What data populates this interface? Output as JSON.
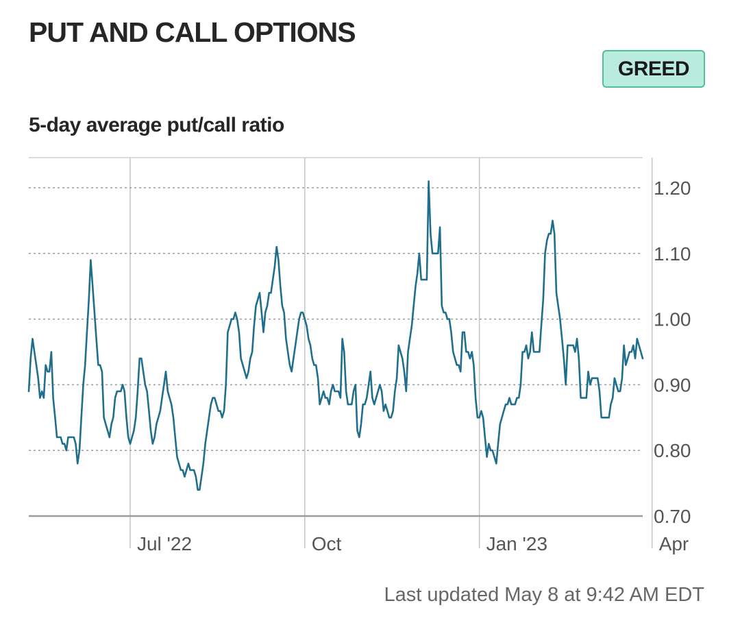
{
  "header": {
    "title": "PUT AND CALL OPTIONS",
    "badge": "GREED",
    "subtitle": "5-day average put/call ratio"
  },
  "colors": {
    "line": "#1f6e8c",
    "badge_bg": "#b9ecdf",
    "badge_border": "#4fbf98"
  },
  "footer": {
    "updated": "Last updated May 8 at 9:42 AM EDT"
  },
  "chart_data": {
    "type": "line",
    "title": "5-day average put/call ratio",
    "ylim": [
      0.7,
      1.25
    ],
    "y_ticks": [
      {
        "value": 1.2,
        "label": "1.20"
      },
      {
        "value": 1.1,
        "label": "1.10"
      },
      {
        "value": 1.0,
        "label": "1.00"
      },
      {
        "value": 0.9,
        "label": "0.90"
      },
      {
        "value": 0.8,
        "label": "0.80"
      },
      {
        "value": 0.7,
        "label": "0.70"
      }
    ],
    "x_ticks": [
      {
        "label": "Jul '22",
        "index": 54
      },
      {
        "label": "Oct",
        "index": 147
      },
      {
        "label": "Jan '23",
        "index": 240
      },
      {
        "label": "Apr",
        "index": 332
      }
    ],
    "grid": true,
    "series": [
      {
        "values": [
          0.89,
          0.94,
          0.97,
          0.95,
          0.93,
          0.91,
          0.88,
          0.89,
          0.88,
          0.93,
          0.92,
          0.92,
          0.95,
          0.88,
          0.85,
          0.82,
          0.82,
          0.82,
          0.81,
          0.81,
          0.8,
          0.82,
          0.82,
          0.82,
          0.82,
          0.81,
          0.78,
          0.8,
          0.85,
          0.9,
          0.93,
          0.98,
          1.03,
          1.09,
          1.05,
          1.01,
          0.97,
          0.93,
          0.93,
          0.92,
          0.85,
          0.84,
          0.83,
          0.82,
          0.84,
          0.85,
          0.88,
          0.89,
          0.89,
          0.89,
          0.9,
          0.89,
          0.85,
          0.82,
          0.81,
          0.82,
          0.83,
          0.85,
          0.89,
          0.94,
          0.94,
          0.92,
          0.9,
          0.89,
          0.86,
          0.83,
          0.81,
          0.82,
          0.84,
          0.85,
          0.86,
          0.88,
          0.9,
          0.92,
          0.89,
          0.88,
          0.87,
          0.85,
          0.82,
          0.79,
          0.78,
          0.77,
          0.77,
          0.76,
          0.77,
          0.78,
          0.77,
          0.77,
          0.77,
          0.76,
          0.74,
          0.74,
          0.76,
          0.78,
          0.81,
          0.83,
          0.85,
          0.87,
          0.88,
          0.88,
          0.87,
          0.86,
          0.86,
          0.85,
          0.86,
          0.9,
          0.98,
          0.99,
          1.0,
          1.0,
          1.01,
          1.0,
          0.98,
          0.94,
          0.93,
          0.92,
          0.91,
          0.92,
          0.94,
          0.95,
          0.99,
          1.02,
          1.03,
          1.04,
          1.01,
          0.98,
          1.01,
          1.02,
          1.04,
          1.04,
          1.06,
          1.08,
          1.11,
          1.09,
          1.05,
          1.02,
          1.01,
          0.97,
          0.95,
          0.93,
          0.92,
          0.94,
          0.96,
          0.98,
          1.0,
          1.01,
          1.01,
          1.0,
          0.99,
          0.97,
          0.96,
          0.94,
          0.93,
          0.93,
          0.91,
          0.87,
          0.88,
          0.89,
          0.88,
          0.88,
          0.87,
          0.89,
          0.9,
          0.89,
          0.89,
          0.89,
          0.88,
          0.97,
          0.95,
          0.89,
          0.87,
          0.87,
          0.87,
          0.89,
          0.9,
          0.83,
          0.82,
          0.84,
          0.87,
          0.87,
          0.88,
          0.9,
          0.92,
          0.88,
          0.87,
          0.88,
          0.89,
          0.9,
          0.89,
          0.86,
          0.87,
          0.86,
          0.85,
          0.85,
          0.86,
          0.89,
          0.91,
          0.96,
          0.95,
          0.94,
          0.92,
          0.89,
          0.95,
          0.97,
          0.99,
          1.02,
          1.05,
          1.07,
          1.1,
          1.06,
          1.06,
          1.06,
          1.06,
          1.21,
          1.13,
          1.1,
          1.1,
          1.1,
          1.1,
          1.14,
          1.02,
          1.01,
          1.01,
          1.0,
          1.0,
          0.98,
          0.95,
          0.94,
          0.93,
          0.93,
          0.92,
          0.98,
          0.98,
          0.95,
          0.95,
          0.94,
          0.95,
          0.93,
          0.88,
          0.85,
          0.85,
          0.86,
          0.85,
          0.82,
          0.79,
          0.81,
          0.8,
          0.8,
          0.79,
          0.78,
          0.81,
          0.84,
          0.85,
          0.86,
          0.87,
          0.87,
          0.88,
          0.87,
          0.87,
          0.87,
          0.88,
          0.88,
          0.9,
          0.95,
          0.95,
          0.96,
          0.94,
          0.95,
          0.98,
          0.95,
          0.95,
          0.95,
          0.95,
          0.99,
          1.03,
          1.1,
          1.12,
          1.13,
          1.13,
          1.15,
          1.13,
          1.04,
          1.02,
          1.0,
          0.97,
          0.94,
          0.9,
          0.96,
          0.96,
          0.96,
          0.96,
          0.95,
          0.97,
          0.94,
          0.88,
          0.88,
          0.88,
          0.88,
          0.92,
          0.9,
          0.91,
          0.91,
          0.91,
          0.91,
          0.89,
          0.85,
          0.85,
          0.85,
          0.85,
          0.85,
          0.87,
          0.88,
          0.91,
          0.9,
          0.89,
          0.89,
          0.91,
          0.96,
          0.93,
          0.94,
          0.95,
          0.95,
          0.96,
          0.94,
          0.97,
          0.96,
          0.95,
          0.94
        ]
      }
    ]
  }
}
